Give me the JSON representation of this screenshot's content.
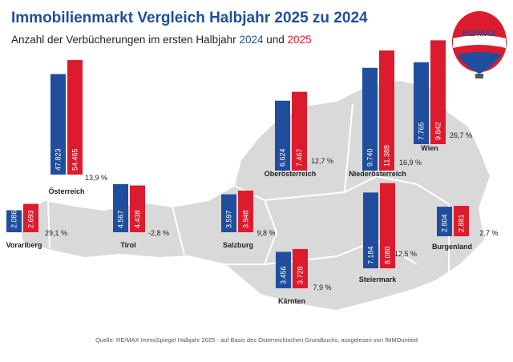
{
  "chart_data": {
    "type": "bar",
    "title": "Immobilienmarkt Vergleich Halbjahr 2025 zu 2024",
    "subtitle": "Anzahl der Verbücherungen im ersten Halbjahr",
    "subtitle_joiner": "und",
    "categories": [
      "Österreich",
      "Vorarlberg",
      "Tirol",
      "Salzburg",
      "Oberösterreich",
      "Niederösterreich",
      "Wien",
      "Kärnten",
      "Steiermark",
      "Burgenland"
    ],
    "series": [
      {
        "name": "2024",
        "color": "#1f4e9c",
        "values": [
          47823,
          2086,
          4567,
          3597,
          6624,
          9740,
          7765,
          3456,
          7184,
          2804
        ],
        "value_labels": [
          "47.823",
          "2.086",
          "4.567",
          "3.597",
          "6.624",
          "9.740",
          "7.765",
          "3.456",
          "7.184",
          "2.804"
        ]
      },
      {
        "name": "2025",
        "color": "#dc1c2e",
        "values": [
          54465,
          2693,
          4438,
          3948,
          7467,
          11388,
          9842,
          3728,
          8080,
          2881
        ],
        "value_labels": [
          "54.465",
          "2.693",
          "4.438",
          "3.948",
          "7.467",
          "11.388",
          "9.842",
          "3.728",
          "8.080",
          "2.881"
        ]
      }
    ],
    "change_labels": [
      "13,9 %",
      "29,1 %",
      "-2,8 %",
      "9,8 %",
      "12,7 %",
      "16,9 %",
      "26,7 %",
      "7,9 %",
      "12,5 %",
      "2,7 %"
    ],
    "source": "Quelle: RE/MAX ImmoSpiegel Halbjahr 2025 - auf Basis des Österreichischen Grundbuchs, ausgelesen von IMMOunited",
    "logo_text": "RE/MAX"
  }
}
